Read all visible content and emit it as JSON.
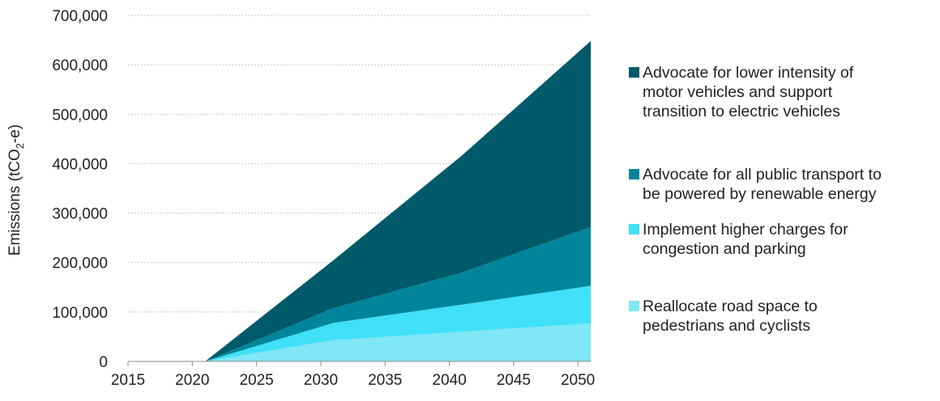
{
  "chart_data": {
    "type": "area",
    "stacked": true,
    "title": "",
    "xlabel": "",
    "ylabel": "Emissions (tCO2-e)",
    "ylabel_parts": {
      "before": "Emissions (tCO",
      "subscript": "2",
      "after": "-e)"
    },
    "xlim": [
      2015,
      2051
    ],
    "ylim": [
      0,
      700000
    ],
    "x_ticks": [
      2015,
      2020,
      2025,
      2030,
      2035,
      2040,
      2045,
      2050
    ],
    "x_tick_labels": [
      "2015",
      "2020",
      "2025",
      "2030",
      "2035",
      "2040",
      "2045",
      "2050"
    ],
    "y_ticks": [
      0,
      100000,
      200000,
      300000,
      400000,
      500000,
      600000,
      700000
    ],
    "y_tick_labels": [
      "0",
      "100,000",
      "200,000",
      "300,000",
      "400,000",
      "500,000",
      "600,000",
      "700,000"
    ],
    "grid": "horizontal dotted",
    "legend_position": "right",
    "x": [
      2015,
      2021,
      2031,
      2041,
      2051
    ],
    "series": [
      {
        "name": "Reallocate road space to pedestrians and cyclists",
        "color": "#7fe7f5",
        "values": [
          0,
          0,
          43000,
          60000,
          77000
        ]
      },
      {
        "name": "Implement higher charges for congestion and parking",
        "color": "#40e0f8",
        "values": [
          0,
          0,
          35000,
          55000,
          76000
        ]
      },
      {
        "name": "Advocate for all public transport to be powered by renewable energy",
        "color": "#00859a",
        "values": [
          0,
          0,
          30000,
          65000,
          119000
        ]
      },
      {
        "name": "Advocate for lower intensity of motor vehicles and support transition to electric vehicles",
        "color": "#005a69",
        "values": [
          0,
          0,
          97000,
          237000,
          376000
        ]
      }
    ]
  },
  "legend": {
    "items": [
      {
        "lines": [
          "Advocate for lower intensity of",
          "motor vehicles and support",
          "transition to electric vehicles"
        ],
        "color": "#005a69"
      },
      {
        "lines": [
          "Advocate for all public transport to",
          "be powered by renewable energy"
        ],
        "color": "#00859a"
      },
      {
        "lines": [
          "Implement higher charges for",
          "congestion and parking"
        ],
        "color": "#40e0f8"
      },
      {
        "lines": [
          "Reallocate road space to",
          "pedestrians and cyclists"
        ],
        "color": "#7fe7f5"
      }
    ]
  }
}
